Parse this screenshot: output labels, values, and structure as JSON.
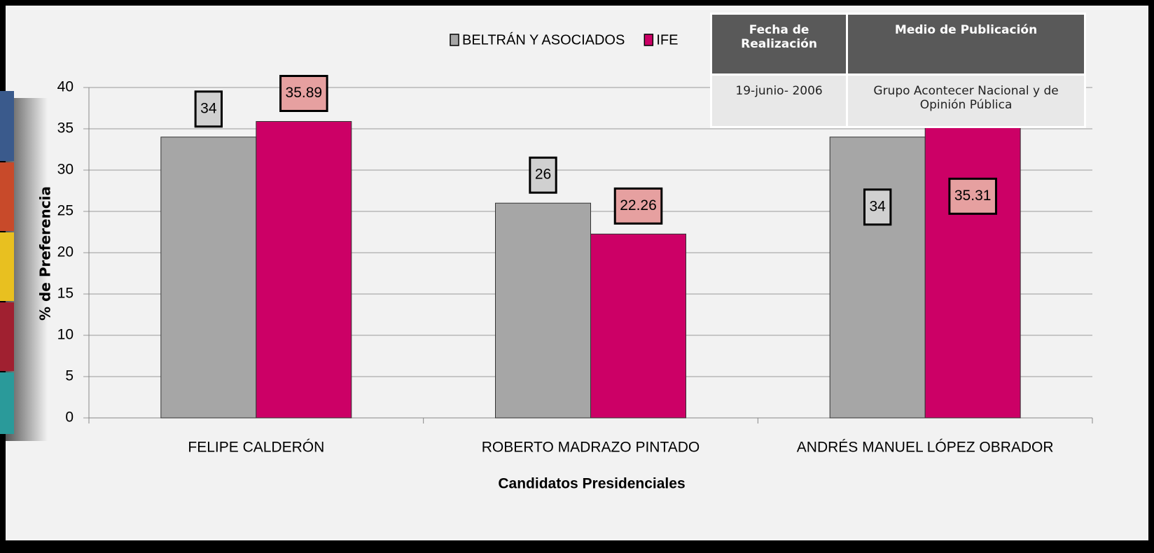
{
  "chart_data": {
    "type": "bar",
    "categories": [
      "FELIPE CALDERÓN",
      "ROBERTO MADRAZO PINTADO",
      "ANDRÉS MANUEL LÓPEZ OBRADOR"
    ],
    "series": [
      {
        "name": "BELTRÁN Y ASOCIADOS",
        "color": "#a6a6a6",
        "values": [
          34,
          26,
          34
        ]
      },
      {
        "name": "IFE",
        "color": "#cc0066",
        "values": [
          35.89,
          22.26,
          35.31
        ]
      }
    ],
    "ylim": [
      0,
      40
    ],
    "yticks": [
      0,
      5,
      10,
      15,
      20,
      25,
      30,
      35,
      40
    ],
    "grid": true,
    "x_label": "Candidatos Presidenciales",
    "y_label": "% de Preferencia"
  },
  "table": {
    "headers": [
      "Fecha de Realización",
      "Medio de Publicación"
    ],
    "rows": [
      [
        "19-junio- 2006",
        "Grupo Acontecer Nacional y de Opinión Pública"
      ]
    ]
  }
}
